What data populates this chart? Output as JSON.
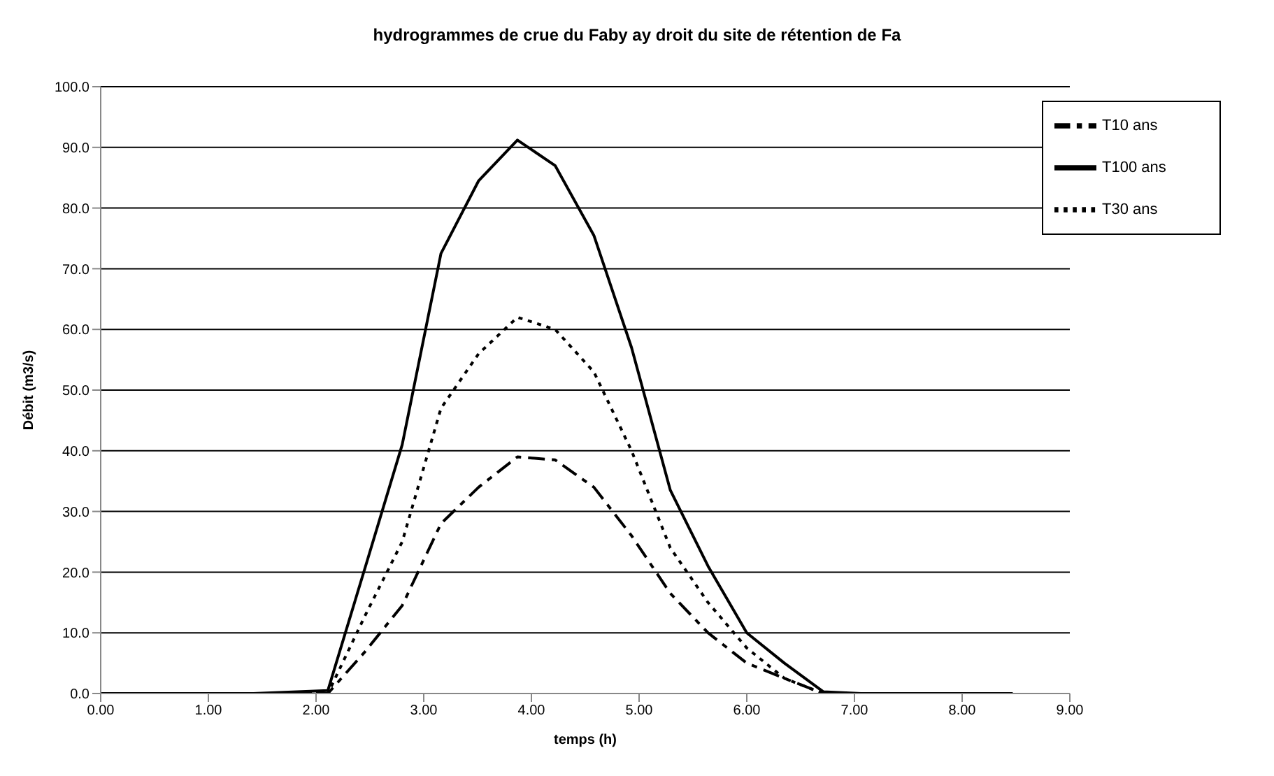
{
  "chart_data": {
    "type": "line",
    "title": "hydrogrammes de crue du Faby ay droit du site de rétention de Fa",
    "xlabel": "temps (h)",
    "ylabel": "Débit (m3/s)",
    "xlim": [
      0,
      9
    ],
    "xticks": [
      {
        "value": 0,
        "label": "0.00"
      },
      {
        "value": 1,
        "label": "1.00"
      },
      {
        "value": 2,
        "label": "2.00"
      },
      {
        "value": 3,
        "label": "3.00"
      },
      {
        "value": 4,
        "label": "4.00"
      },
      {
        "value": 5,
        "label": "5.00"
      },
      {
        "value": 6,
        "label": "6.00"
      },
      {
        "value": 7,
        "label": "7.00"
      },
      {
        "value": 8,
        "label": "8.00"
      },
      {
        "value": 9,
        "label": "9.00"
      }
    ],
    "ylim": [
      0,
      100
    ],
    "yticks": [
      {
        "value": 0,
        "label": "0.0"
      },
      {
        "value": 10,
        "label": "10.0"
      },
      {
        "value": 20,
        "label": "20.0"
      },
      {
        "value": 30,
        "label": "30.0"
      },
      {
        "value": 40,
        "label": "40.0"
      },
      {
        "value": 50,
        "label": "50.0"
      },
      {
        "value": 60,
        "label": "60.0"
      },
      {
        "value": 70,
        "label": "70.0"
      },
      {
        "value": 80,
        "label": "80.0"
      },
      {
        "value": 90,
        "label": "90.0"
      },
      {
        "value": 100,
        "label": "100.0"
      }
    ],
    "grid": "y",
    "legend": "top right",
    "marker": "none",
    "series": [
      {
        "name": "T10 ans",
        "color": "#000000",
        "line_style": "dashed",
        "x": [
          0,
          1.42,
          2.11,
          2.46,
          2.8,
          3.16,
          3.51,
          3.87,
          4.22,
          4.58,
          4.93,
          5.29,
          5.64,
          6.0,
          6.35,
          6.71,
          7.06,
          8.47
        ],
        "values": [
          0,
          0,
          0,
          7,
          14.5,
          28,
          34,
          39,
          38.5,
          34,
          26,
          16.5,
          10,
          5,
          2.5,
          0,
          0,
          0
        ]
      },
      {
        "name": "T30 ans",
        "color": "#000000",
        "line_style": "dotted",
        "x": [
          0,
          1.42,
          2.11,
          2.46,
          2.8,
          3.16,
          3.51,
          3.87,
          4.22,
          4.58,
          4.93,
          5.29,
          5.64,
          6.0,
          6.35,
          6.71,
          7.06,
          8.47
        ],
        "values": [
          0,
          0,
          0,
          13,
          25,
          47,
          56,
          62,
          60,
          53,
          40,
          24,
          15,
          7.5,
          2.5,
          0,
          0,
          0
        ]
      },
      {
        "name": "T100 ans",
        "color": "#000000",
        "line_style": "solid",
        "x": [
          0,
          1.42,
          2.11,
          2.46,
          2.8,
          3.16,
          3.51,
          3.87,
          4.22,
          4.58,
          4.93,
          5.29,
          5.64,
          6.0,
          6.35,
          6.71,
          7.06,
          8.47
        ],
        "values": [
          0,
          0,
          0.5,
          21,
          41,
          72.5,
          84.5,
          91.2,
          87,
          75.5,
          57,
          33.5,
          21,
          10,
          5,
          0.3,
          0,
          0
        ]
      }
    ]
  }
}
